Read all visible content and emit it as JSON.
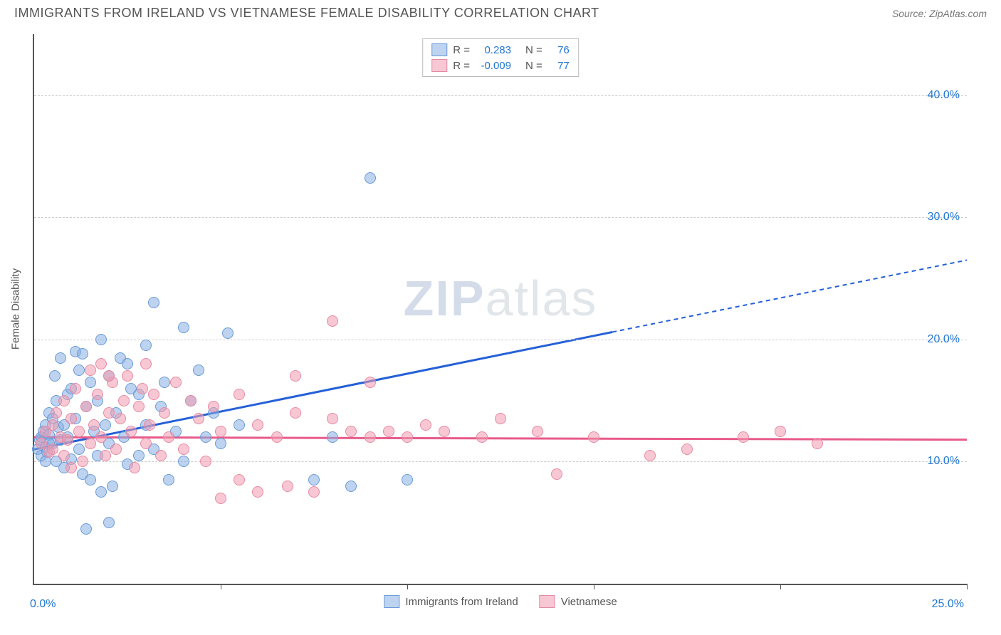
{
  "header": {
    "title": "IMMIGRANTS FROM IRELAND VS VIETNAMESE FEMALE DISABILITY CORRELATION CHART",
    "source_label": "Source:",
    "source_name": "ZipAtlas.com"
  },
  "chart": {
    "type": "scatter",
    "ylabel": "Female Disability",
    "watermark_a": "ZIP",
    "watermark_b": "atlas",
    "xlim": [
      0,
      25
    ],
    "ylim": [
      0,
      45
    ],
    "x_origin_label": "0.0%",
    "x_end_label": "25.0%",
    "ytick_values": [
      10,
      20,
      30,
      40
    ],
    "ytick_labels": [
      "10.0%",
      "20.0%",
      "30.0%",
      "40.0%"
    ],
    "xtick_values": [
      5,
      10,
      15,
      20,
      25
    ],
    "grid_color": "#cccccc",
    "background": "#ffffff",
    "series": [
      {
        "name": "Immigrants from Ireland",
        "fill": "rgba(135,175,225,0.55)",
        "stroke": "#6b9bd8",
        "trend_color": "#2460d8",
        "R_label": "R =",
        "R": "0.283",
        "N_label": "N =",
        "N": "76",
        "trend": {
          "y_at_x0": 11.0,
          "y_at_x25": 26.5,
          "solid_until_x": 15.5
        },
        "points": [
          [
            0.1,
            11.0
          ],
          [
            0.15,
            11.8
          ],
          [
            0.2,
            12.0
          ],
          [
            0.2,
            10.5
          ],
          [
            0.25,
            12.5
          ],
          [
            0.3,
            11.2
          ],
          [
            0.3,
            13.0
          ],
          [
            0.35,
            10.8
          ],
          [
            0.4,
            12.2
          ],
          [
            0.4,
            14.0
          ],
          [
            0.5,
            11.5
          ],
          [
            0.5,
            13.5
          ],
          [
            0.55,
            17.0
          ],
          [
            0.6,
            10.0
          ],
          [
            0.6,
            15.0
          ],
          [
            0.65,
            12.8
          ],
          [
            0.7,
            18.5
          ],
          [
            0.7,
            11.8
          ],
          [
            0.8,
            13.0
          ],
          [
            0.8,
            9.5
          ],
          [
            0.9,
            15.5
          ],
          [
            0.9,
            12.0
          ],
          [
            1.0,
            16.0
          ],
          [
            1.0,
            10.2
          ],
          [
            1.1,
            19.0
          ],
          [
            1.1,
            13.5
          ],
          [
            1.2,
            11.0
          ],
          [
            1.2,
            17.5
          ],
          [
            1.3,
            18.8
          ],
          [
            1.3,
            9.0
          ],
          [
            1.4,
            14.5
          ],
          [
            1.5,
            8.5
          ],
          [
            1.5,
            16.5
          ],
          [
            1.6,
            12.5
          ],
          [
            1.7,
            15.0
          ],
          [
            1.7,
            10.5
          ],
          [
            1.8,
            20.0
          ],
          [
            1.9,
            13.0
          ],
          [
            2.0,
            17.0
          ],
          [
            2.0,
            11.5
          ],
          [
            2.1,
            8.0
          ],
          [
            2.2,
            14.0
          ],
          [
            2.3,
            18.5
          ],
          [
            2.4,
            12.0
          ],
          [
            2.5,
            9.8
          ],
          [
            2.6,
            16.0
          ],
          [
            2.8,
            10.5
          ],
          [
            2.8,
            15.5
          ],
          [
            3.0,
            13.0
          ],
          [
            3.0,
            19.5
          ],
          [
            3.2,
            11.0
          ],
          [
            3.2,
            23.0
          ],
          [
            3.4,
            14.5
          ],
          [
            3.6,
            8.5
          ],
          [
            3.8,
            12.5
          ],
          [
            4.0,
            10.0
          ],
          [
            4.0,
            21.0
          ],
          [
            4.2,
            15.0
          ],
          [
            4.4,
            17.5
          ],
          [
            4.6,
            12.0
          ],
          [
            4.8,
            14.0
          ],
          [
            5.0,
            11.5
          ],
          [
            5.2,
            20.5
          ],
          [
            5.5,
            13.0
          ],
          [
            1.4,
            4.5
          ],
          [
            1.8,
            7.5
          ],
          [
            7.5,
            8.5
          ],
          [
            8.0,
            12.0
          ],
          [
            8.5,
            8.0
          ],
          [
            9.0,
            33.2
          ],
          [
            10.0,
            8.5
          ],
          [
            2.0,
            5.0
          ],
          [
            2.5,
            18.0
          ],
          [
            3.5,
            16.5
          ],
          [
            0.3,
            10.0
          ],
          [
            0.4,
            11.5
          ]
        ]
      },
      {
        "name": "Vietnamese",
        "fill": "rgba(240,155,175,0.55)",
        "stroke": "#e78aa5",
        "trend_color": "#e85a8a",
        "R_label": "R =",
        "R": "-0.009",
        "N_label": "N =",
        "N": "77",
        "trend": {
          "y_at_x0": 12.0,
          "y_at_x25": 11.8,
          "solid_until_x": 25
        },
        "points": [
          [
            0.2,
            11.5
          ],
          [
            0.3,
            12.5
          ],
          [
            0.4,
            10.8
          ],
          [
            0.5,
            13.0
          ],
          [
            0.5,
            11.0
          ],
          [
            0.6,
            14.0
          ],
          [
            0.7,
            12.0
          ],
          [
            0.8,
            10.5
          ],
          [
            0.8,
            15.0
          ],
          [
            0.9,
            11.8
          ],
          [
            1.0,
            13.5
          ],
          [
            1.0,
            9.5
          ],
          [
            1.1,
            16.0
          ],
          [
            1.2,
            12.5
          ],
          [
            1.3,
            10.0
          ],
          [
            1.4,
            14.5
          ],
          [
            1.5,
            11.5
          ],
          [
            1.5,
            17.5
          ],
          [
            1.6,
            13.0
          ],
          [
            1.7,
            15.5
          ],
          [
            1.8,
            12.0
          ],
          [
            1.8,
            18.0
          ],
          [
            1.9,
            10.5
          ],
          [
            2.0,
            14.0
          ],
          [
            2.1,
            16.5
          ],
          [
            2.2,
            11.0
          ],
          [
            2.3,
            13.5
          ],
          [
            2.4,
            15.0
          ],
          [
            2.5,
            17.0
          ],
          [
            2.6,
            12.5
          ],
          [
            2.7,
            9.5
          ],
          [
            2.8,
            14.5
          ],
          [
            2.9,
            16.0
          ],
          [
            3.0,
            11.5
          ],
          [
            3.1,
            13.0
          ],
          [
            3.2,
            15.5
          ],
          [
            3.4,
            10.5
          ],
          [
            3.5,
            14.0
          ],
          [
            3.6,
            12.0
          ],
          [
            3.8,
            16.5
          ],
          [
            4.0,
            11.0
          ],
          [
            4.2,
            15.0
          ],
          [
            4.4,
            13.5
          ],
          [
            4.6,
            10.0
          ],
          [
            4.8,
            14.5
          ],
          [
            5.0,
            7.0
          ],
          [
            5.0,
            12.5
          ],
          [
            5.5,
            8.5
          ],
          [
            5.5,
            15.5
          ],
          [
            6.0,
            7.5
          ],
          [
            6.0,
            13.0
          ],
          [
            6.5,
            12.0
          ],
          [
            6.8,
            8.0
          ],
          [
            7.0,
            14.0
          ],
          [
            7.0,
            17.0
          ],
          [
            7.5,
            7.5
          ],
          [
            8.0,
            21.5
          ],
          [
            8.0,
            13.5
          ],
          [
            8.5,
            12.5
          ],
          [
            9.0,
            16.5
          ],
          [
            9.0,
            12.0
          ],
          [
            9.5,
            12.5
          ],
          [
            10.0,
            12.0
          ],
          [
            10.5,
            13.0
          ],
          [
            11.0,
            12.5
          ],
          [
            12.0,
            12.0
          ],
          [
            12.5,
            13.5
          ],
          [
            13.5,
            12.5
          ],
          [
            14.0,
            9.0
          ],
          [
            15.0,
            12.0
          ],
          [
            16.5,
            10.5
          ],
          [
            17.5,
            11.0
          ],
          [
            19.0,
            12.0
          ],
          [
            20.0,
            12.5
          ],
          [
            21.0,
            11.5
          ],
          [
            2.0,
            17.0
          ],
          [
            3.0,
            18.0
          ]
        ]
      }
    ],
    "point_radius": 7
  }
}
